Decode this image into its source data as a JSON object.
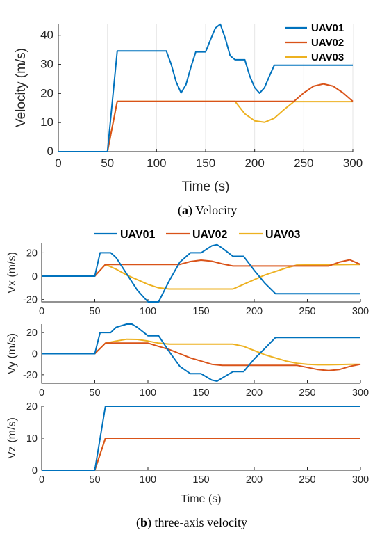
{
  "colors": {
    "UAV01": "#0072BD",
    "UAV02": "#D95319",
    "UAV03": "#EDB120"
  },
  "caption_a": {
    "letter": "a",
    "text": "Velocity"
  },
  "caption_b": {
    "letter": "b",
    "text": "three-axis velocity"
  },
  "chart_data": [
    {
      "type": "line",
      "xlabel": "Time (s)",
      "ylabel": "Velocity (m/s)",
      "xlim": [
        0,
        300
      ],
      "ylim": [
        0,
        44
      ],
      "xticks": [
        0,
        50,
        100,
        150,
        200,
        250,
        300
      ],
      "yticks": [
        0,
        10,
        20,
        30,
        40
      ],
      "legend": "top-right",
      "series": [
        {
          "name": "UAV01",
          "x": [
            0,
            50,
            60,
            110,
            115,
            120,
            125,
            130,
            135,
            140,
            150,
            155,
            160,
            165,
            170,
            175,
            180,
            190,
            195,
            200,
            205,
            210,
            215,
            220,
            300
          ],
          "y": [
            0,
            0,
            34.6,
            34.6,
            30,
            24,
            20.2,
            23,
            29,
            34.3,
            34.3,
            38.5,
            42.5,
            43.8,
            39,
            33,
            31.6,
            31.6,
            26,
            22,
            20.1,
            22,
            26,
            29.7,
            29.7
          ]
        },
        {
          "name": "UAV02",
          "x": [
            0,
            50,
            60,
            240,
            250,
            260,
            270,
            280,
            290,
            300
          ],
          "y": [
            0,
            0,
            17.3,
            17.3,
            20.2,
            22.5,
            23.3,
            22.5,
            20.2,
            17.3
          ]
        },
        {
          "name": "UAV03",
          "x": [
            0,
            50,
            60,
            180,
            190,
            200,
            210,
            220,
            230,
            240,
            300
          ],
          "y": [
            0,
            0,
            17.3,
            17.3,
            13,
            10.6,
            10.1,
            11.5,
            14.5,
            17.2,
            17.2
          ]
        }
      ]
    },
    {
      "type": "line",
      "ylabel": "Vx (m/s)",
      "xlim": [
        0,
        300
      ],
      "ylim": [
        -22,
        28
      ],
      "xticks": [
        0,
        50,
        100,
        150,
        200,
        250,
        300
      ],
      "yticks": [
        -20,
        0,
        20
      ],
      "legend": "top",
      "series": [
        {
          "name": "UAV01",
          "x": [
            0,
            50,
            55,
            65,
            70,
            80,
            90,
            100,
            110,
            120,
            130,
            140,
            150,
            160,
            165,
            170,
            180,
            190,
            200,
            210,
            220,
            300
          ],
          "y": [
            0,
            0,
            20,
            20,
            16,
            2,
            -12,
            -22,
            -22,
            -4,
            12,
            20,
            20,
            26,
            27,
            24,
            17,
            17,
            5,
            -6,
            -15,
            -15
          ]
        },
        {
          "name": "UAV02",
          "x": [
            0,
            50,
            60,
            130,
            140,
            150,
            160,
            170,
            180,
            270,
            280,
            290,
            300
          ],
          "y": [
            0,
            0,
            10,
            10,
            12.5,
            13.7,
            12.8,
            10.5,
            8.7,
            8.7,
            12,
            14,
            10
          ]
        },
        {
          "name": "UAV03",
          "x": [
            0,
            50,
            60,
            70,
            80,
            90,
            100,
            110,
            120,
            180,
            190,
            200,
            210,
            220,
            230,
            240,
            300
          ],
          "y": [
            0,
            0,
            10,
            6,
            1,
            -3,
            -7,
            -10,
            -11,
            -11,
            -7,
            -3,
            1,
            4,
            7,
            9.5,
            10
          ]
        }
      ]
    },
    {
      "type": "line",
      "ylabel": "Vy (m/s)",
      "xlim": [
        0,
        300
      ],
      "ylim": [
        -28,
        28
      ],
      "xticks": [
        0,
        50,
        100,
        150,
        200,
        250,
        300
      ],
      "yticks": [
        -20,
        0,
        20
      ],
      "series": [
        {
          "name": "UAV01",
          "x": [
            0,
            50,
            55,
            65,
            70,
            80,
            85,
            90,
            100,
            110,
            120,
            130,
            140,
            150,
            160,
            165,
            170,
            180,
            190,
            200,
            210,
            220,
            300
          ],
          "y": [
            0,
            0,
            20,
            20,
            25,
            28,
            28,
            25,
            17,
            17,
            2,
            -12,
            -19,
            -19,
            -25,
            -26,
            -23,
            -17,
            -17,
            -5,
            5,
            15.3,
            15.3
          ]
        },
        {
          "name": "UAV02",
          "x": [
            0,
            50,
            60,
            100,
            110,
            120,
            130,
            140,
            150,
            160,
            170,
            180,
            240,
            250,
            260,
            270,
            280,
            290,
            300
          ],
          "y": [
            0,
            0,
            10,
            10,
            7,
            4,
            0,
            -4,
            -7,
            -10,
            -11,
            -11,
            -11,
            -13,
            -15,
            -16,
            -15,
            -12,
            -10
          ]
        },
        {
          "name": "UAV03",
          "x": [
            0,
            50,
            60,
            70,
            80,
            90,
            100,
            110,
            120,
            180,
            190,
            200,
            210,
            220,
            230,
            240,
            250,
            260,
            270,
            280,
            290,
            300
          ],
          "y": [
            0,
            0,
            10,
            12,
            13.7,
            13.5,
            12,
            10,
            9,
            9,
            7,
            3,
            -1,
            -4,
            -7,
            -9,
            -10,
            -10.5,
            -10.5,
            -10.3,
            -10.1,
            -10
          ]
        }
      ]
    },
    {
      "type": "line",
      "xlabel": "Time (s)",
      "ylabel": "Vz (m/s)",
      "xlim": [
        0,
        300
      ],
      "ylim": [
        0,
        20
      ],
      "xticks": [
        0,
        50,
        100,
        150,
        200,
        250,
        300
      ],
      "yticks": [
        0,
        10,
        20
      ],
      "series": [
        {
          "name": "UAV01",
          "x": [
            0,
            50,
            60,
            300
          ],
          "y": [
            0,
            0,
            20,
            20
          ]
        },
        {
          "name": "UAV02",
          "x": [
            0,
            50,
            60,
            300
          ],
          "y": [
            0,
            0,
            10,
            10
          ]
        },
        {
          "name": "UAV03",
          "x": [
            0,
            50,
            60,
            300
          ],
          "y": [
            0,
            0,
            10,
            10
          ]
        }
      ]
    }
  ]
}
